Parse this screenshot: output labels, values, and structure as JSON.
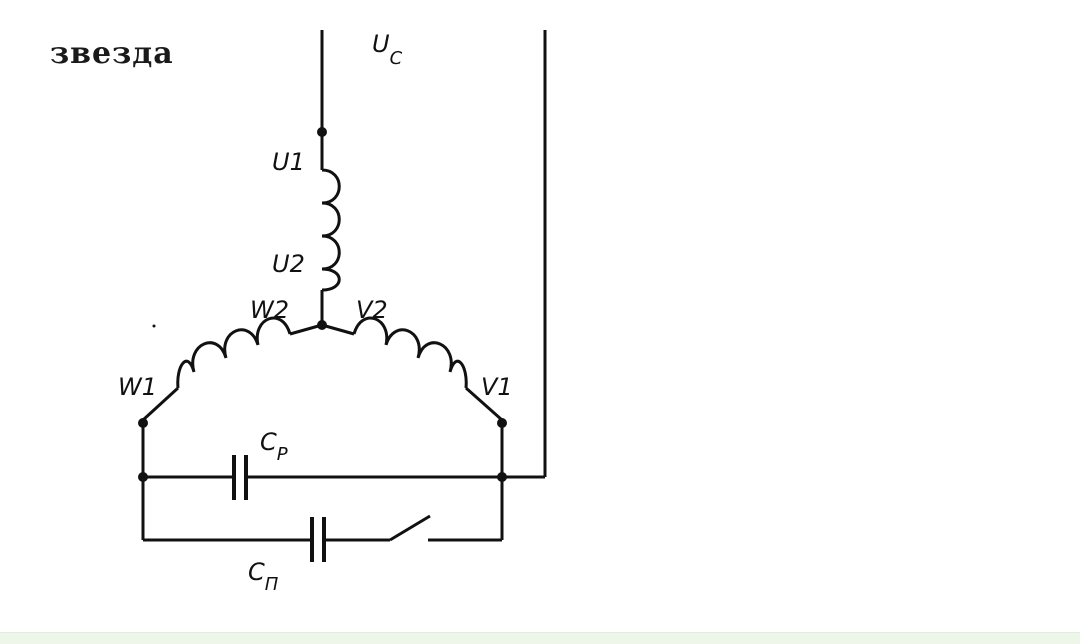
{
  "diagram": {
    "title": "звезда",
    "supply_label": {
      "main": "U",
      "sub": "C"
    },
    "terminals": {
      "u1": "U1",
      "u2": "U2",
      "w1": "W1",
      "w2": "W2",
      "v1": "V1",
      "v2": "V2"
    },
    "capacitor_run": {
      "main": "C",
      "sub": "P"
    },
    "capacitor_start": {
      "main": "C",
      "sub": "П"
    }
  }
}
